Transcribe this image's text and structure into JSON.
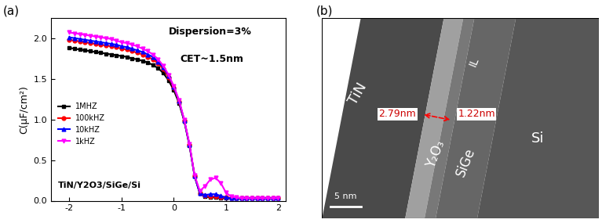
{
  "chart_data": {
    "type": "line",
    "y_label": "C(μF/cm²)",
    "annotations": [
      "(a)",
      "Dispersion=3%",
      "CET~1.5nm",
      "TiN/Y2O3/SiGe/Si"
    ],
    "x": [
      -2.0,
      -1.9,
      -1.8,
      -1.7,
      -1.6,
      -1.5,
      -1.4,
      -1.3,
      -1.2,
      -1.1,
      -1.0,
      -0.9,
      -0.8,
      -0.7,
      -0.6,
      -0.5,
      -0.4,
      -0.3,
      -0.2,
      -0.1,
      0.0,
      0.1,
      0.2,
      0.3,
      0.4,
      0.5,
      0.6,
      0.7,
      0.8,
      0.9,
      1.0,
      1.1,
      1.2,
      1.3,
      1.4,
      1.5,
      1.6,
      1.7,
      1.8,
      1.9,
      2.0
    ],
    "series": [
      {
        "name": "1MHZ",
        "color": "#000000",
        "marker": "square",
        "values": [
          1.88,
          1.87,
          1.86,
          1.85,
          1.84,
          1.83,
          1.82,
          1.81,
          1.8,
          1.79,
          1.78,
          1.77,
          1.75,
          1.74,
          1.72,
          1.7,
          1.67,
          1.63,
          1.57,
          1.48,
          1.36,
          1.2,
          0.98,
          0.68,
          0.3,
          0.09,
          0.05,
          0.04,
          0.04,
          0.03,
          0.03,
          0.03,
          0.03,
          0.03,
          0.03,
          0.03,
          0.03,
          0.03,
          0.03,
          0.03,
          0.03
        ]
      },
      {
        "name": "100kHZ",
        "color": "#ff0000",
        "marker": "circle",
        "values": [
          1.98,
          1.97,
          1.96,
          1.95,
          1.94,
          1.93,
          1.92,
          1.91,
          1.9,
          1.89,
          1.87,
          1.86,
          1.84,
          1.82,
          1.8,
          1.77,
          1.74,
          1.69,
          1.62,
          1.52,
          1.39,
          1.22,
          0.99,
          0.69,
          0.3,
          0.09,
          0.06,
          0.05,
          0.05,
          0.04,
          0.04,
          0.03,
          0.03,
          0.03,
          0.03,
          0.03,
          0.03,
          0.03,
          0.03,
          0.03,
          0.03
        ]
      },
      {
        "name": "10kHZ",
        "color": "#0000ff",
        "marker": "triangle_up",
        "values": [
          2.01,
          2.0,
          1.99,
          1.98,
          1.97,
          1.96,
          1.95,
          1.94,
          1.93,
          1.92,
          1.9,
          1.89,
          1.87,
          1.85,
          1.83,
          1.8,
          1.77,
          1.71,
          1.64,
          1.54,
          1.4,
          1.23,
          0.99,
          0.69,
          0.3,
          0.09,
          0.07,
          0.08,
          0.08,
          0.06,
          0.04,
          0.03,
          0.03,
          0.03,
          0.03,
          0.03,
          0.03,
          0.03,
          0.03,
          0.03,
          0.03
        ]
      },
      {
        "name": "1kHZ",
        "color": "#ff00ff",
        "marker": "triangle_down",
        "values": [
          2.07,
          2.06,
          2.05,
          2.04,
          2.03,
          2.02,
          2.01,
          2.0,
          1.99,
          1.97,
          1.95,
          1.94,
          1.92,
          1.9,
          1.87,
          1.84,
          1.8,
          1.74,
          1.66,
          1.55,
          1.41,
          1.24,
          1.0,
          0.7,
          0.31,
          0.12,
          0.18,
          0.26,
          0.28,
          0.22,
          0.1,
          0.05,
          0.04,
          0.03,
          0.03,
          0.03,
          0.03,
          0.03,
          0.03,
          0.03,
          0.03
        ]
      }
    ],
    "xlim": [
      -2.35,
      2.15
    ],
    "xticks": [
      -2,
      -1,
      0,
      1,
      2
    ],
    "ylim": [
      0,
      2.25
    ],
    "yticks": [
      {
        "value": 0,
        "label": "0.0"
      },
      {
        "value": 0.5,
        "label": "0.5"
      },
      {
        "value": 1.0,
        "label": "1.0"
      },
      {
        "value": 1.5,
        "label": "1.5"
      },
      {
        "value": 2.0,
        "label": "2.0"
      }
    ],
    "legend": "center left",
    "grid": false
  },
  "image": {
    "label": "(b)",
    "regions": [
      "TiN",
      "Y₂O₃",
      "IL",
      "SiGe",
      "Si"
    ],
    "measurements": [
      "2.79nm",
      "1.22nm"
    ],
    "scale_bar": "5 nm"
  }
}
